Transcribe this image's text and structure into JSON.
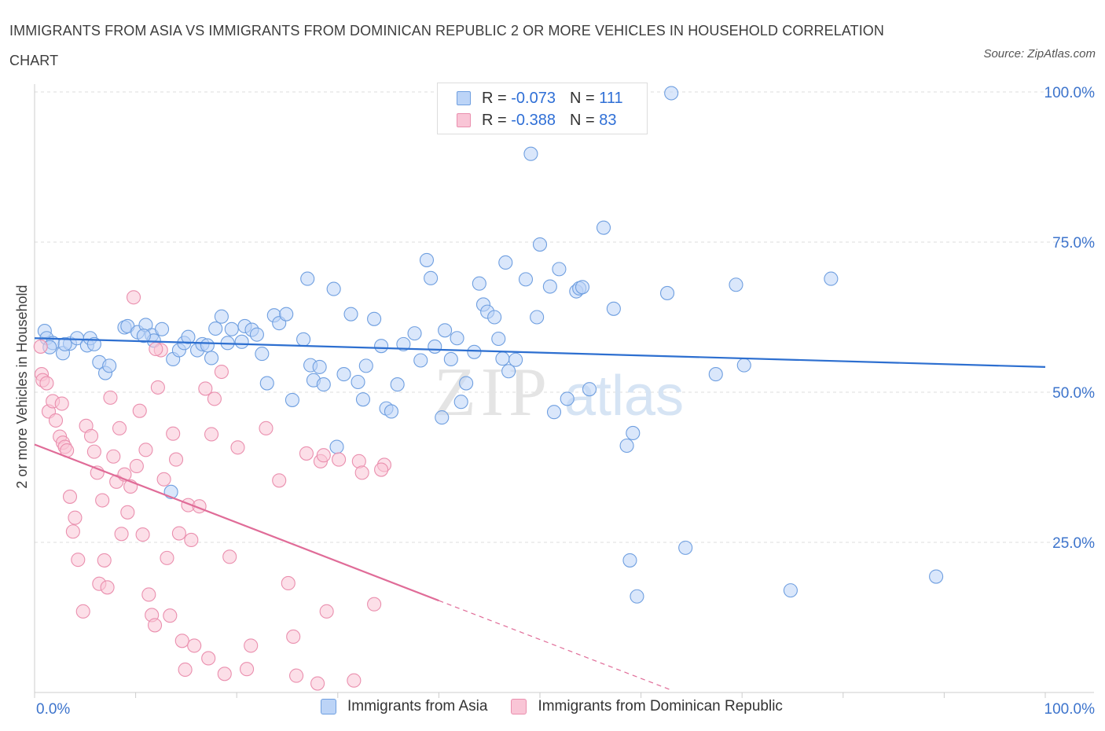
{
  "title": "IMMIGRANTS FROM ASIA VS IMMIGRANTS FROM DOMINICAN REPUBLIC 2 OR MORE VEHICLES IN HOUSEHOLD CORRELATION CHART",
  "source": "Source: ZipAtlas.com",
  "watermark": {
    "zip": "ZIP",
    "atlas": "atlas"
  },
  "legend": {
    "rows": [
      {
        "r_label": "R =",
        "r_value": "-0.073",
        "n_label": "N =",
        "n_value": "111"
      },
      {
        "r_label": "R =",
        "r_value": "-0.388",
        "n_label": "N =",
        "n_value": "83"
      }
    ]
  },
  "colors": {
    "asia_fill": "#bcd4f7",
    "asia_stroke": "#6f9fe0",
    "asia_line": "#2d6fd0",
    "dr_fill": "#f9c5d6",
    "dr_stroke": "#ea8fae",
    "dr_line": "#e06c98",
    "axis_text": "#3d74cc",
    "grid": "#dddddd"
  },
  "chart_data": {
    "type": "scatter",
    "title": "IMMIGRANTS FROM ASIA VS IMMIGRANTS FROM DOMINICAN REPUBLIC 2 OR MORE VEHICLES IN HOUSEHOLD CORRELATION CHART",
    "xlabel": "",
    "ylabel": "2 or more Vehicles in Household",
    "xlim": [
      0,
      100
    ],
    "ylim": [
      0,
      100
    ],
    "x_tick_labels": [
      "0.0%",
      "100.0%"
    ],
    "y_ticks": [
      25,
      50,
      75,
      100
    ],
    "y_tick_labels": [
      "25.0%",
      "50.0%",
      "75.0%",
      "100.0%"
    ],
    "grid": true,
    "legend_position": "top-center",
    "series": [
      {
        "name": "Immigrants from Asia",
        "R": -0.073,
        "N": 111,
        "trend": {
          "x0": 0,
          "y0": 59.0,
          "x1": 100,
          "y1": 54.2
        },
        "points": [
          [
            1.0,
            60.2
          ],
          [
            1.2,
            59.0
          ],
          [
            1.8,
            58.2
          ],
          [
            2.8,
            56.5
          ],
          [
            3.5,
            58.1
          ],
          [
            4.2,
            59.0
          ],
          [
            3.0,
            58.0
          ],
          [
            5.2,
            57.8
          ],
          [
            5.5,
            59.0
          ],
          [
            6.4,
            55.0
          ],
          [
            7.0,
            53.2
          ],
          [
            7.4,
            54.4
          ],
          [
            8.9,
            60.8
          ],
          [
            9.2,
            61.0
          ],
          [
            10.2,
            60.0
          ],
          [
            11.0,
            61.2
          ],
          [
            11.6,
            59.5
          ],
          [
            11.8,
            58.6
          ],
          [
            12.6,
            60.5
          ],
          [
            13.7,
            55.5
          ],
          [
            14.3,
            57.0
          ],
          [
            14.8,
            58.2
          ],
          [
            15.2,
            59.2
          ],
          [
            16.1,
            57.0
          ],
          [
            16.6,
            58.0
          ],
          [
            17.1,
            57.8
          ],
          [
            17.5,
            55.7
          ],
          [
            17.9,
            60.6
          ],
          [
            18.5,
            62.6
          ],
          [
            19.1,
            58.2
          ],
          [
            19.5,
            60.5
          ],
          [
            20.5,
            58.4
          ],
          [
            20.8,
            61.0
          ],
          [
            21.5,
            60.4
          ],
          [
            22.0,
            59.6
          ],
          [
            22.5,
            56.4
          ],
          [
            23.0,
            51.5
          ],
          [
            23.7,
            62.8
          ],
          [
            24.2,
            61.5
          ],
          [
            24.9,
            63.0
          ],
          [
            25.5,
            48.7
          ],
          [
            26.6,
            58.8
          ],
          [
            27.0,
            68.9
          ],
          [
            27.3,
            54.5
          ],
          [
            27.6,
            52.0
          ],
          [
            28.2,
            54.2
          ],
          [
            28.6,
            51.3
          ],
          [
            29.6,
            67.2
          ],
          [
            29.9,
            40.9
          ],
          [
            30.6,
            53.0
          ],
          [
            31.3,
            63.0
          ],
          [
            32.0,
            51.7
          ],
          [
            32.5,
            48.8
          ],
          [
            32.8,
            54.4
          ],
          [
            33.6,
            62.2
          ],
          [
            34.3,
            57.7
          ],
          [
            34.8,
            47.3
          ],
          [
            35.3,
            46.8
          ],
          [
            35.9,
            51.3
          ],
          [
            36.5,
            58.0
          ],
          [
            37.6,
            59.8
          ],
          [
            38.2,
            55.3
          ],
          [
            38.8,
            72.0
          ],
          [
            39.2,
            69.0
          ],
          [
            39.6,
            57.6
          ],
          [
            40.3,
            45.8
          ],
          [
            40.6,
            60.3
          ],
          [
            41.2,
            55.5
          ],
          [
            41.8,
            59.0
          ],
          [
            42.2,
            48.4
          ],
          [
            42.7,
            51.5
          ],
          [
            43.5,
            56.7
          ],
          [
            44.0,
            68.1
          ],
          [
            44.4,
            64.6
          ],
          [
            44.8,
            63.4
          ],
          [
            45.5,
            62.5
          ],
          [
            45.9,
            58.9
          ],
          [
            46.3,
            55.6
          ],
          [
            46.6,
            71.6
          ],
          [
            46.9,
            53.5
          ],
          [
            47.6,
            55.4
          ],
          [
            48.6,
            68.8
          ],
          [
            49.1,
            89.7
          ],
          [
            49.7,
            62.5
          ],
          [
            50.0,
            74.6
          ],
          [
            51.0,
            67.6
          ],
          [
            51.4,
            46.7
          ],
          [
            51.9,
            70.5
          ],
          [
            52.7,
            48.9
          ],
          [
            53.6,
            66.8
          ],
          [
            53.9,
            67.3
          ],
          [
            54.2,
            67.5
          ],
          [
            54.9,
            50.5
          ],
          [
            56.3,
            77.4
          ],
          [
            56.9,
            100.0
          ],
          [
            57.3,
            63.9
          ],
          [
            58.6,
            41.1
          ],
          [
            63.0,
            99.8
          ],
          [
            58.9,
            22.0
          ],
          [
            59.6,
            16.0
          ],
          [
            59.2,
            43.2
          ],
          [
            62.6,
            66.5
          ],
          [
            64.4,
            24.1
          ],
          [
            67.4,
            53.0
          ],
          [
            69.4,
            67.9
          ],
          [
            70.2,
            54.5
          ],
          [
            74.8,
            17.0
          ],
          [
            78.8,
            68.9
          ],
          [
            89.2,
            19.3
          ],
          [
            5.9,
            58.0
          ],
          [
            10.8,
            59.4
          ],
          [
            13.5,
            33.4
          ],
          [
            1.5,
            57.5
          ]
        ]
      },
      {
        "name": "Immigrants from Dominican Republic",
        "R": -0.388,
        "N": 83,
        "trend": {
          "x0": 0,
          "y0": 41.3,
          "x1": 40,
          "y1": 15.3,
          "dashed_x1": 63,
          "dashed_y1": 0.4
        },
        "points": [
          [
            0.6,
            57.6
          ],
          [
            0.7,
            53.0
          ],
          [
            0.8,
            52.0
          ],
          [
            1.2,
            51.5
          ],
          [
            1.4,
            46.8
          ],
          [
            1.8,
            48.5
          ],
          [
            2.1,
            45.3
          ],
          [
            2.5,
            42.6
          ],
          [
            2.8,
            41.6
          ],
          [
            3.0,
            40.9
          ],
          [
            3.2,
            40.3
          ],
          [
            3.5,
            32.6
          ],
          [
            3.8,
            26.8
          ],
          [
            4.0,
            29.1
          ],
          [
            4.3,
            22.1
          ],
          [
            4.8,
            13.5
          ],
          [
            5.1,
            44.4
          ],
          [
            5.6,
            42.7
          ],
          [
            5.9,
            40.1
          ],
          [
            6.2,
            36.6
          ],
          [
            6.4,
            18.1
          ],
          [
            6.7,
            32.0
          ],
          [
            6.9,
            22.0
          ],
          [
            7.2,
            17.5
          ],
          [
            7.5,
            49.1
          ],
          [
            7.8,
            39.3
          ],
          [
            8.1,
            35.1
          ],
          [
            8.4,
            44.0
          ],
          [
            8.6,
            26.4
          ],
          [
            8.9,
            36.3
          ],
          [
            9.2,
            30.0
          ],
          [
            9.5,
            34.3
          ],
          [
            9.8,
            65.8
          ],
          [
            10.1,
            37.7
          ],
          [
            10.4,
            46.9
          ],
          [
            10.7,
            26.3
          ],
          [
            11.0,
            40.4
          ],
          [
            11.3,
            16.3
          ],
          [
            11.6,
            12.9
          ],
          [
            11.9,
            11.2
          ],
          [
            12.2,
            50.8
          ],
          [
            12.5,
            57.0
          ],
          [
            12.8,
            35.5
          ],
          [
            13.1,
            22.4
          ],
          [
            13.4,
            12.8
          ],
          [
            13.7,
            43.1
          ],
          [
            14.0,
            38.8
          ],
          [
            14.3,
            26.5
          ],
          [
            14.6,
            8.6
          ],
          [
            14.9,
            3.8
          ],
          [
            15.2,
            31.2
          ],
          [
            15.5,
            25.4
          ],
          [
            15.8,
            7.8
          ],
          [
            16.3,
            31.0
          ],
          [
            16.9,
            50.6
          ],
          [
            17.2,
            5.7
          ],
          [
            17.5,
            43.0
          ],
          [
            17.8,
            48.9
          ],
          [
            18.5,
            53.4
          ],
          [
            18.8,
            3.1
          ],
          [
            19.3,
            22.6
          ],
          [
            20.1,
            40.8
          ],
          [
            21.0,
            3.9
          ],
          [
            21.4,
            7.8
          ],
          [
            22.9,
            44.0
          ],
          [
            24.2,
            35.3
          ],
          [
            25.1,
            18.2
          ],
          [
            25.6,
            9.3
          ],
          [
            25.9,
            2.8
          ],
          [
            26.9,
            39.8
          ],
          [
            28.0,
            1.5
          ],
          [
            28.3,
            38.5
          ],
          [
            28.6,
            39.5
          ],
          [
            28.9,
            13.5
          ],
          [
            30.1,
            38.8
          ],
          [
            31.6,
            2.0
          ],
          [
            32.1,
            38.5
          ],
          [
            32.4,
            36.6
          ],
          [
            33.6,
            14.7
          ],
          [
            34.6,
            37.9
          ],
          [
            34.3,
            37.1
          ],
          [
            2.7,
            48.1
          ],
          [
            12.0,
            57.2
          ]
        ]
      }
    ]
  },
  "x_axis": {
    "left_label": "0.0%",
    "right_label": "100.0%"
  },
  "y_axis": {
    "label": "2 or more Vehicles in Household"
  },
  "bottom_legend": [
    {
      "label": "Immigrants from Asia"
    },
    {
      "label": "Immigrants from Dominican Republic"
    }
  ]
}
